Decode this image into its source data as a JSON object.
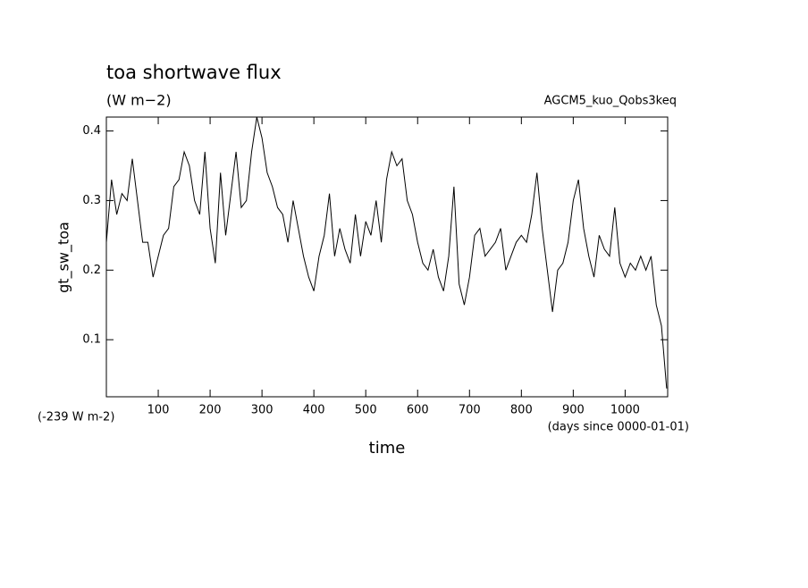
{
  "chart_data": {
    "type": "line",
    "title": "toa shortwave flux",
    "subtitle": "(W m−2)",
    "annotation": "AGCM5_kuo_Qobs3keq",
    "y_label": "gt_sw_toa",
    "y_offset_note": "(-239 W m-2)",
    "x_label": "time",
    "x_units": "(days since 0000-01-01)",
    "xlim": [
      0,
      1082
    ],
    "ylim": [
      0.018,
      0.42
    ],
    "xticks": [
      100,
      200,
      300,
      400,
      500,
      600,
      700,
      800,
      900,
      1000
    ],
    "yticks": [
      0.1,
      0.2,
      0.3,
      0.4
    ],
    "x": [
      0,
      10,
      20,
      30,
      40,
      50,
      60,
      70,
      80,
      90,
      100,
      110,
      120,
      130,
      140,
      150,
      160,
      170,
      180,
      190,
      200,
      210,
      220,
      230,
      240,
      250,
      260,
      270,
      280,
      290,
      300,
      310,
      320,
      330,
      340,
      350,
      360,
      370,
      380,
      390,
      400,
      410,
      420,
      430,
      440,
      450,
      460,
      470,
      480,
      490,
      500,
      510,
      520,
      530,
      540,
      550,
      560,
      570,
      580,
      590,
      600,
      610,
      620,
      630,
      640,
      650,
      660,
      670,
      680,
      690,
      700,
      710,
      720,
      730,
      740,
      750,
      760,
      770,
      780,
      790,
      800,
      810,
      820,
      830,
      840,
      850,
      860,
      870,
      880,
      890,
      900,
      910,
      920,
      930,
      940,
      950,
      960,
      970,
      980,
      990,
      1000,
      1010,
      1020,
      1030,
      1040,
      1050,
      1060,
      1070,
      1080
    ],
    "series": [
      {
        "name": "gt_sw_toa",
        "color": "#000000",
        "values": [
          0.24,
          0.33,
          0.28,
          0.31,
          0.3,
          0.36,
          0.3,
          0.24,
          0.24,
          0.19,
          0.22,
          0.25,
          0.26,
          0.32,
          0.33,
          0.37,
          0.35,
          0.3,
          0.28,
          0.37,
          0.26,
          0.21,
          0.34,
          0.25,
          0.31,
          0.37,
          0.29,
          0.3,
          0.37,
          0.42,
          0.39,
          0.34,
          0.32,
          0.29,
          0.28,
          0.24,
          0.3,
          0.26,
          0.22,
          0.19,
          0.17,
          0.22,
          0.25,
          0.31,
          0.22,
          0.26,
          0.23,
          0.21,
          0.28,
          0.22,
          0.27,
          0.25,
          0.3,
          0.24,
          0.33,
          0.37,
          0.35,
          0.36,
          0.3,
          0.28,
          0.24,
          0.21,
          0.2,
          0.23,
          0.19,
          0.17,
          0.22,
          0.32,
          0.18,
          0.15,
          0.19,
          0.25,
          0.26,
          0.22,
          0.23,
          0.24,
          0.26,
          0.2,
          0.22,
          0.24,
          0.25,
          0.24,
          0.28,
          0.34,
          0.26,
          0.2,
          0.14,
          0.2,
          0.21,
          0.24,
          0.3,
          0.33,
          0.26,
          0.22,
          0.19,
          0.25,
          0.23,
          0.22,
          0.29,
          0.21,
          0.19,
          0.21,
          0.2,
          0.22,
          0.2,
          0.22,
          0.15,
          0.12,
          0.03
        ]
      }
    ]
  }
}
